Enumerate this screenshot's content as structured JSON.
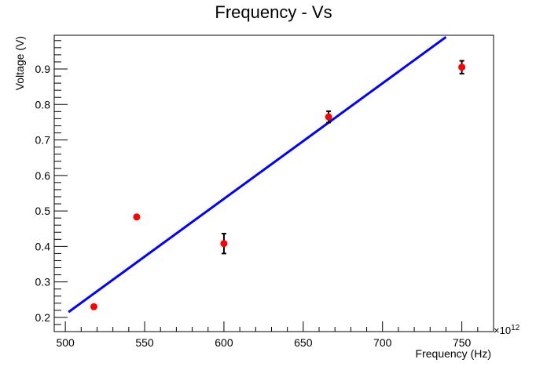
{
  "chart_data": {
    "type": "scatter",
    "title": "Frequency - Vs",
    "xlabel": "Frequency (Hz)",
    "ylabel": "Voltage (V)",
    "x_exponent_label": "×10",
    "x_exponent_power": "12",
    "xlim": [
      493,
      770
    ],
    "ylim": [
      0.16,
      0.995
    ],
    "x_major_ticks": [
      500,
      550,
      600,
      650,
      700,
      750
    ],
    "y_major_ticks": [
      0.2,
      0.3,
      0.4,
      0.5,
      0.6,
      0.7,
      0.8,
      0.9
    ],
    "x_tick_labels": [
      "500",
      "550",
      "600",
      "650",
      "700",
      "750"
    ],
    "y_tick_labels": [
      "0.2",
      "0.3",
      "0.4",
      "0.5",
      "0.6",
      "0.7",
      "0.8",
      "0.9"
    ],
    "grid": false,
    "series": [
      {
        "kind": "points",
        "color": "#ff0000",
        "points": [
          {
            "x": 518,
            "y": 0.23,
            "err": 0
          },
          {
            "x": 545,
            "y": 0.483,
            "err": 0
          },
          {
            "x": 600,
            "y": 0.408,
            "err": 0.028
          },
          {
            "x": 666,
            "y": 0.765,
            "err": 0.016
          },
          {
            "x": 750,
            "y": 0.905,
            "err": 0.018
          }
        ],
        "error_color": "#000000"
      },
      {
        "kind": "fit-line",
        "color": "#0000ff",
        "x": [
          502,
          740
        ],
        "y": [
          0.215,
          0.99
        ]
      }
    ]
  }
}
